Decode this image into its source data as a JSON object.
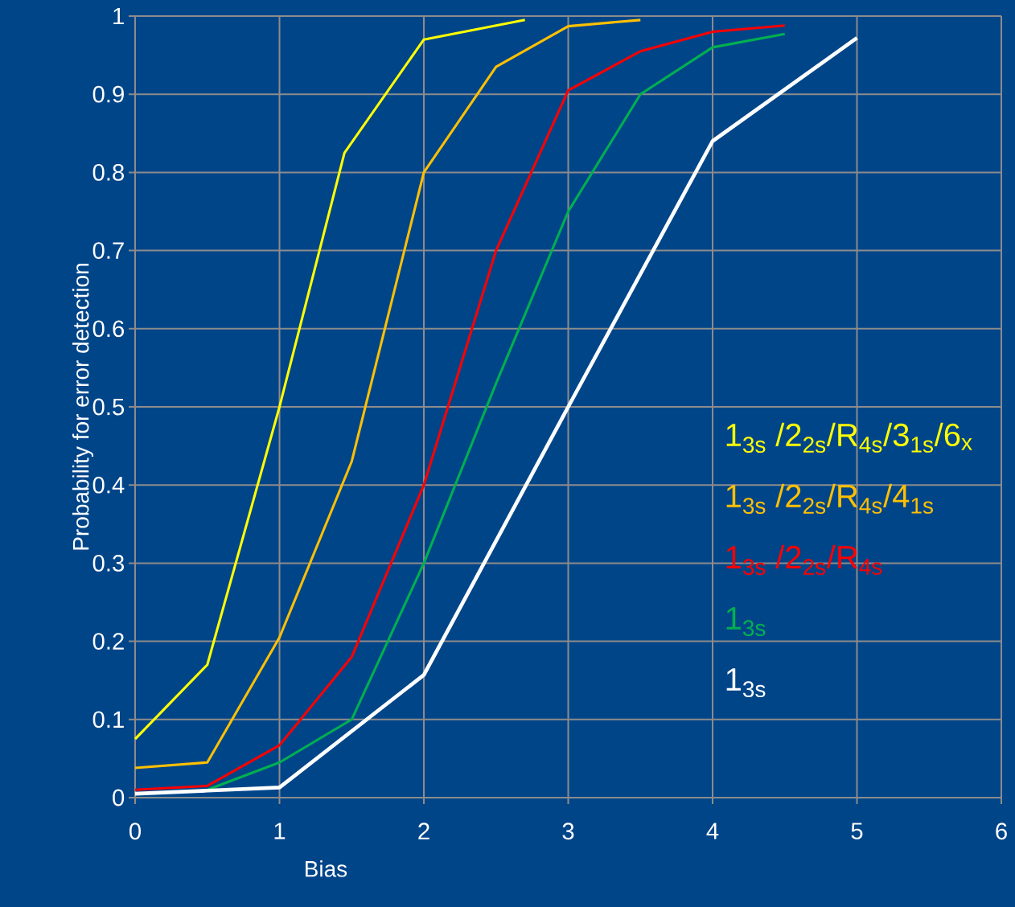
{
  "chart_data": {
    "type": "line",
    "xlabel": "Bias",
    "ylabel": "Probability for error detection",
    "xlim": [
      0,
      6
    ],
    "ylim": [
      0,
      1
    ],
    "xticks": [
      0,
      1,
      2,
      3,
      4,
      5,
      6
    ],
    "yticks": [
      0,
      0.1,
      0.2,
      0.3,
      0.4,
      0.5,
      0.6,
      0.7,
      0.8,
      0.9,
      1
    ],
    "grid": true,
    "legend": "right",
    "marker": "none",
    "line_style": "solid",
    "series": [
      {
        "name": "1$_{3s}$ /2$_{2s}$/R$_{4s}$/3$_{1s}$/6$_{x}$",
        "color": "#ffff00",
        "x": [
          0,
          0.5,
          1,
          1.45,
          2,
          2.7
        ],
        "values": [
          0.075,
          0.17,
          0.5,
          0.825,
          0.97,
          0.995
        ]
      },
      {
        "name": "1$_{3s}$ /2$_{2s}$/R$_{4s}$/4$_{1s}$",
        "color": "#ffc000",
        "x": [
          0,
          0.5,
          1,
          1.5,
          2,
          2.5,
          3,
          3.5
        ],
        "values": [
          0.038,
          0.045,
          0.205,
          0.43,
          0.8,
          0.935,
          0.987,
          0.995
        ]
      },
      {
        "name": "1$_{3s}$ /2$_{2s}$/R$_{4s}$",
        "color": "#ff0000",
        "x": [
          0,
          0.5,
          1,
          1.5,
          2,
          2.5,
          3,
          3.5,
          4,
          4.5
        ],
        "values": [
          0.01,
          0.015,
          0.067,
          0.18,
          0.4,
          0.7,
          0.905,
          0.955,
          0.98,
          0.988
        ]
      },
      {
        "name": "1$_{3s}$",
        "color": "#00b050",
        "x": [
          0.5,
          1,
          1.5,
          2,
          2.5,
          3,
          3.5,
          4,
          4.5
        ],
        "values": [
          0.01,
          0.045,
          0.1,
          0.3,
          0.53,
          0.75,
          0.9,
          0.96,
          0.977
        ]
      },
      {
        "name": "1$_{3s}$",
        "color": "#ffffff",
        "x": [
          0,
          0.5,
          1,
          2,
          3,
          4,
          5
        ],
        "values": [
          0.005,
          0.009,
          0.013,
          0.157,
          0.5,
          0.84,
          0.972
        ]
      }
    ]
  }
}
